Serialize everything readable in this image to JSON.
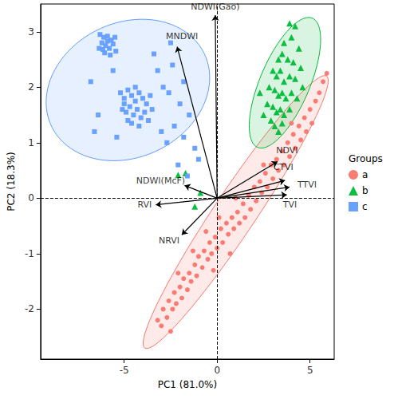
{
  "chart_data": {
    "type": "scatter",
    "x_label": "PC1 (81.0%)",
    "y_label": "PC2 (18.3%)",
    "xlim": [
      -9.5,
      6.3
    ],
    "xticks": [
      -5,
      0,
      5
    ],
    "ylim": [
      -2.9,
      3.5
    ],
    "yticks": [
      -2,
      -1,
      0,
      1,
      2,
      3
    ],
    "grid": false,
    "legend": "right",
    "legend_title": "Groups",
    "reference_lines": [
      {
        "axis": "x",
        "value": 0
      },
      {
        "axis": "y",
        "value": 0
      }
    ],
    "loadings": {
      "origin": [
        0,
        0
      ],
      "vectors": [
        {
          "name": "NDWI(Gao)",
          "end": [
            -0.1,
            3.3
          ]
        },
        {
          "name": "MNDWI",
          "end": [
            -2.15,
            2.73
          ]
        },
        {
          "name": "NDWI(McF)",
          "end": [
            -1.75,
            0.23
          ]
        },
        {
          "name": "RVI",
          "end": [
            -3.3,
            -0.12
          ]
        },
        {
          "name": "NRVI",
          "end": [
            -1.9,
            -0.66
          ]
        },
        {
          "name": "NDVI",
          "end": [
            3.25,
            0.66
          ]
        },
        {
          "name": "CTVI",
          "end": [
            3.65,
            0.32
          ]
        },
        {
          "name": "TTVI",
          "end": [
            3.9,
            0.2
          ]
        },
        {
          "name": "TVI",
          "end": [
            3.75,
            0.06
          ]
        }
      ]
    },
    "series": [
      {
        "name": "a",
        "color": "#F8766D",
        "marker": "circle",
        "ellipse": {
          "center": [
            1.0,
            -0.25
          ],
          "major": [
            4.9,
            2.45
          ],
          "minor": [
            0.9,
            -0.23
          ]
        },
        "values": [
          [
            -3.2,
            -2.2
          ],
          [
            -3.0,
            -2.3
          ],
          [
            -2.9,
            -2.0
          ],
          [
            -2.7,
            -2.15
          ],
          [
            -2.6,
            -1.85
          ],
          [
            -2.4,
            -2.0
          ],
          [
            -2.3,
            -1.7
          ],
          [
            -2.2,
            -1.9
          ],
          [
            -2.0,
            -1.6
          ],
          [
            -1.9,
            -1.8
          ],
          [
            -1.8,
            -1.45
          ],
          [
            -1.6,
            -1.65
          ],
          [
            -1.5,
            -1.35
          ],
          [
            -1.4,
            -1.5
          ],
          [
            -1.2,
            -1.2
          ],
          [
            -1.1,
            -1.4
          ],
          [
            -1.0,
            -1.05
          ],
          [
            -0.8,
            -1.25
          ],
          [
            -0.7,
            -0.95
          ],
          [
            -0.5,
            -1.1
          ],
          [
            -0.4,
            -0.8
          ],
          [
            -0.3,
            -1.0
          ],
          [
            -0.1,
            -0.7
          ],
          [
            0.0,
            -0.9
          ],
          [
            0.2,
            -0.55
          ],
          [
            0.3,
            -0.8
          ],
          [
            0.5,
            -0.45
          ],
          [
            0.6,
            -0.65
          ],
          [
            0.8,
            -0.35
          ],
          [
            0.9,
            -0.55
          ],
          [
            1.1,
            -0.25
          ],
          [
            1.2,
            -0.45
          ],
          [
            1.4,
            -0.1
          ],
          [
            1.5,
            -0.35
          ],
          [
            1.7,
            0.05
          ],
          [
            1.8,
            -0.2
          ],
          [
            2.0,
            0.2
          ],
          [
            2.1,
            -0.05
          ],
          [
            2.3,
            0.3
          ],
          [
            2.4,
            0.1
          ],
          [
            2.6,
            0.45
          ],
          [
            2.7,
            0.2
          ],
          [
            2.9,
            0.6
          ],
          [
            3.0,
            0.35
          ],
          [
            3.2,
            0.7
          ],
          [
            3.3,
            0.5
          ],
          [
            3.5,
            0.85
          ],
          [
            3.6,
            0.6
          ],
          [
            3.8,
            1.0
          ],
          [
            3.9,
            0.75
          ],
          [
            4.1,
            1.15
          ],
          [
            4.2,
            0.9
          ],
          [
            4.4,
            1.3
          ],
          [
            4.5,
            1.05
          ],
          [
            4.7,
            1.45
          ],
          [
            4.8,
            1.2
          ],
          [
            5.0,
            1.6
          ],
          [
            5.1,
            1.35
          ],
          [
            5.3,
            1.75
          ],
          [
            5.5,
            1.9
          ],
          [
            5.7,
            2.1
          ],
          [
            5.9,
            2.25
          ],
          [
            -0.6,
            -0.6
          ],
          [
            0.1,
            -0.35
          ],
          [
            1.0,
            0.0
          ],
          [
            -1.3,
            -0.95
          ],
          [
            -2.1,
            -1.35
          ],
          [
            2.5,
            0.6
          ],
          [
            4.0,
            1.35
          ],
          [
            -0.2,
            -1.3
          ],
          [
            0.7,
            -1.0
          ],
          [
            -2.5,
            -2.4
          ]
        ]
      },
      {
        "name": "b",
        "color": "#00BA38",
        "marker": "triangle",
        "ellipse": {
          "center": [
            3.65,
            2.08
          ],
          "major": [
            1.5,
            1.16
          ],
          "minor": [
            1.2,
            -0.2
          ]
        },
        "values": [
          [
            3.9,
            3.15
          ],
          [
            4.2,
            3.1
          ],
          [
            4.0,
            2.9
          ],
          [
            3.6,
            2.8
          ],
          [
            4.4,
            2.7
          ],
          [
            3.3,
            2.5
          ],
          [
            3.5,
            2.6
          ],
          [
            3.8,
            2.5
          ],
          [
            4.1,
            2.45
          ],
          [
            4.5,
            2.35
          ],
          [
            3.0,
            2.3
          ],
          [
            3.2,
            2.2
          ],
          [
            3.4,
            2.3
          ],
          [
            3.6,
            2.1
          ],
          [
            3.9,
            2.2
          ],
          [
            4.2,
            2.15
          ],
          [
            4.6,
            2.0
          ],
          [
            2.8,
            2.0
          ],
          [
            3.1,
            1.95
          ],
          [
            3.3,
            1.85
          ],
          [
            3.5,
            1.9
          ],
          [
            3.7,
            1.8
          ],
          [
            4.0,
            1.9
          ],
          [
            4.3,
            1.8
          ],
          [
            2.7,
            1.7
          ],
          [
            3.0,
            1.65
          ],
          [
            3.2,
            1.55
          ],
          [
            3.4,
            1.6
          ],
          [
            3.6,
            1.5
          ],
          [
            3.9,
            1.6
          ],
          [
            2.9,
            1.4
          ],
          [
            3.1,
            1.3
          ],
          [
            3.3,
            1.2
          ],
          [
            3.5,
            1.35
          ],
          [
            2.5,
            1.5
          ],
          [
            2.3,
            1.9
          ],
          [
            -2.1,
            0.42
          ],
          [
            -1.7,
            0.45
          ],
          [
            -1.2,
            -0.15
          ],
          [
            -0.9,
            0.1
          ]
        ]
      },
      {
        "name": "c",
        "color": "#619CFF",
        "marker": "square",
        "ellipse": {
          "center": [
            -4.8,
            1.95
          ],
          "major": [
            4.4,
            0.25
          ],
          "minor": [
            0.1,
            -1.25
          ]
        },
        "values": [
          [
            -6.3,
            2.95
          ],
          [
            -6.1,
            2.9
          ],
          [
            -5.9,
            2.92
          ],
          [
            -5.7,
            2.85
          ],
          [
            -6.2,
            2.8
          ],
          [
            -6.0,
            2.75
          ],
          [
            -5.8,
            2.7
          ],
          [
            -5.6,
            2.78
          ],
          [
            -5.5,
            2.9
          ],
          [
            -6.35,
            2.7
          ],
          [
            -6.05,
            2.62
          ],
          [
            -5.75,
            2.58
          ],
          [
            -5.45,
            2.65
          ],
          [
            -6.15,
            2.68
          ],
          [
            -5.9,
            2.83
          ],
          [
            -5.2,
            1.9
          ],
          [
            -5.0,
            1.8
          ],
          [
            -4.8,
            1.95
          ],
          [
            -4.6,
            1.85
          ],
          [
            -4.4,
            1.75
          ],
          [
            -4.2,
            1.9
          ],
          [
            -4.0,
            1.8
          ],
          [
            -3.8,
            1.7
          ],
          [
            -3.6,
            1.85
          ],
          [
            -5.1,
            1.6
          ],
          [
            -4.9,
            1.55
          ],
          [
            -4.7,
            1.65
          ],
          [
            -4.5,
            1.5
          ],
          [
            -4.3,
            1.6
          ],
          [
            -4.1,
            1.45
          ],
          [
            -3.9,
            1.55
          ],
          [
            -3.7,
            1.4
          ],
          [
            -4.6,
            1.35
          ],
          [
            -4.8,
            1.4
          ],
          [
            -5.0,
            1.7
          ],
          [
            -4.4,
            2.0
          ],
          [
            -3.5,
            1.6
          ],
          [
            -4.2,
            1.3
          ],
          [
            -6.6,
            1.2
          ],
          [
            -6.4,
            1.5
          ],
          [
            -6.8,
            2.1
          ],
          [
            -5.6,
            2.3
          ],
          [
            -5.4,
            1.1
          ],
          [
            -3.2,
            2.3
          ],
          [
            -2.9,
            2.0
          ],
          [
            -2.6,
            1.9
          ],
          [
            -2.4,
            2.4
          ],
          [
            -2.0,
            1.7
          ],
          [
            -3.0,
            1.2
          ],
          [
            -2.7,
            1.0
          ],
          [
            -2.3,
            1.3
          ],
          [
            -1.8,
            1.1
          ],
          [
            -1.5,
            1.5
          ],
          [
            -1.2,
            0.9
          ],
          [
            -1.0,
            0.7
          ],
          [
            -2.1,
            0.6
          ],
          [
            -1.6,
            0.4
          ],
          [
            -3.4,
            2.6
          ],
          [
            -2.5,
            2.8
          ],
          [
            -1.8,
            2.1
          ]
        ]
      }
    ]
  }
}
